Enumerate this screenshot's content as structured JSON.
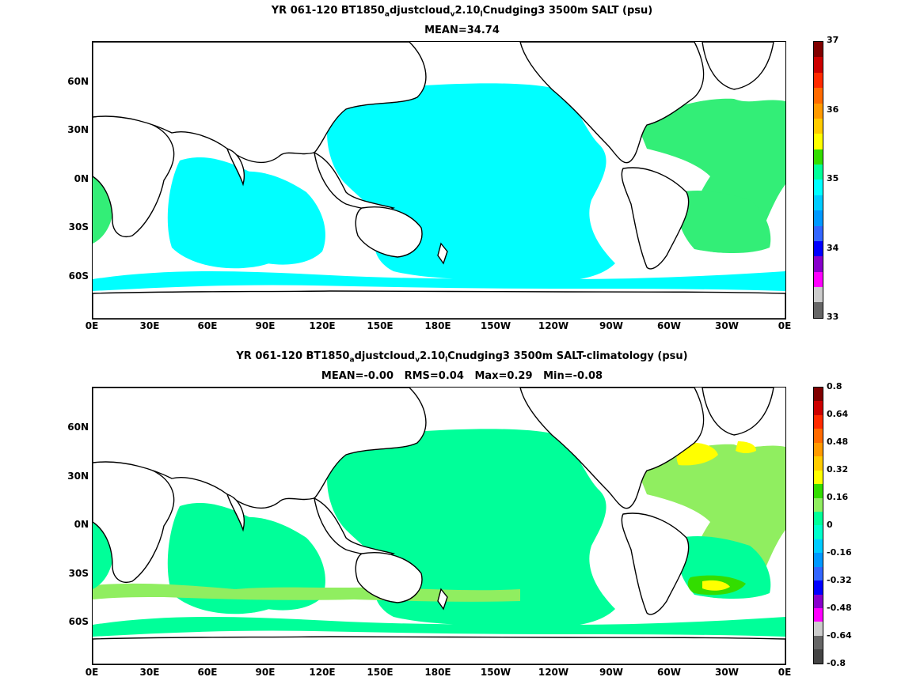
{
  "top_panel": {
    "title_prefix": "YR 061-120 BT1850",
    "title_sub_a": "a",
    "title_mid": "djustcloud",
    "title_sub_v": "v",
    "title_mid2": "2.10",
    "title_sub_l": "l",
    "title_suffix": "Cnudging3 3500m SALT (psu)",
    "stats": "MEAN=34.74",
    "colorbar_labels": [
      "37",
      "36",
      "35",
      "34",
      "33"
    ],
    "colorbar_colors": [
      "#800000",
      "#cc0000",
      "#ff2a00",
      "#ff6a00",
      "#ff9a00",
      "#ffcc00",
      "#ffff00",
      "#33dd00",
      "#00ff99",
      "#00ffff",
      "#00ccff",
      "#0099ff",
      "#3366ff",
      "#0000ff",
      "#8800cc",
      "#ff00ff",
      "#cccccc",
      "#666666"
    ]
  },
  "bottom_panel": {
    "title_prefix": "YR 061-120 BT1850",
    "title_sub_a": "a",
    "title_mid": "djustcloud",
    "title_sub_v": "v",
    "title_mid2": "2.10",
    "title_sub_l": "l",
    "title_suffix": "Cnudging3 3500m SALT-climatology (psu)",
    "stats": "MEAN=-0.00   RMS=0.04   Max=0.29   Min=-0.08",
    "colorbar_labels": [
      "0.8",
      "0.64",
      "0.48",
      "0.32",
      "0.16",
      "0",
      "-0.16",
      "-0.32",
      "-0.48",
      "-0.64",
      "-0.8"
    ],
    "colorbar_colors": [
      "#800000",
      "#cc0000",
      "#ff2a00",
      "#ff6a00",
      "#ff9a00",
      "#ffcc00",
      "#ffff00",
      "#33dd00",
      "#90ee60",
      "#00ff99",
      "#00ffcc",
      "#00ccff",
      "#0099ff",
      "#3366ff",
      "#0000ff",
      "#8800cc",
      "#ff00ff",
      "#cccccc",
      "#666666",
      "#444444"
    ]
  },
  "axes": {
    "lat_labels": [
      "60N",
      "30N",
      "0N",
      "30S",
      "60S"
    ],
    "lon_labels": [
      "0E",
      "30E",
      "60E",
      "90E",
      "120E",
      "150E",
      "180E",
      "150W",
      "120W",
      "90W",
      "60W",
      "30W",
      "0E"
    ]
  },
  "colors": {
    "ocean_top": "#00ffff",
    "ocean_top_alt": "#00ff99",
    "ocean_top_atlantic": "#33ee77",
    "ocean_bottom": "#00ff99",
    "ocean_bottom_light": "#90ee60",
    "ocean_bottom_yellow": "#ffff00",
    "ocean_bottom_green": "#33dd00",
    "land": "#ffffff",
    "coast": "#000000"
  }
}
